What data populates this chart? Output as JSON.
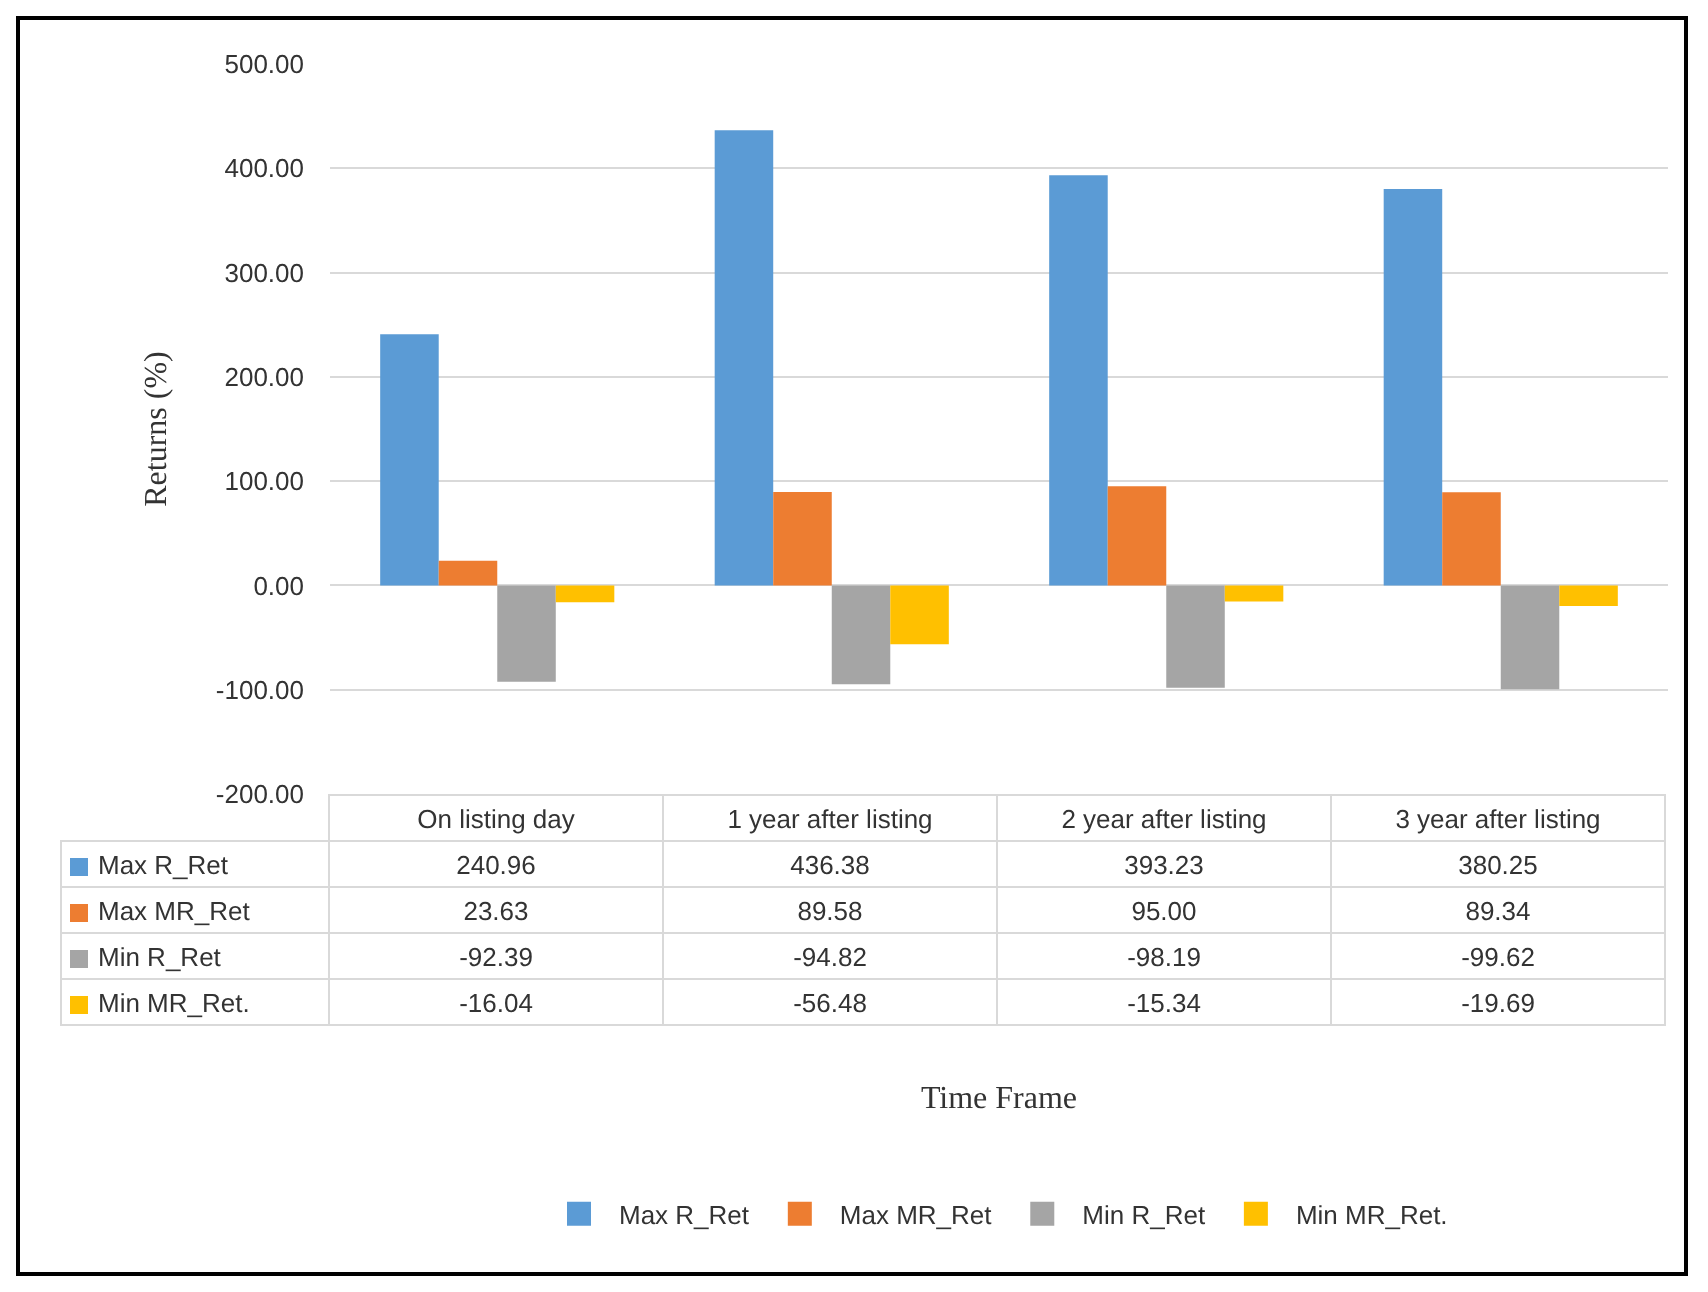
{
  "chart_data": {
    "type": "bar",
    "annotations": [
      "Time Frame"
    ],
    "ylabel": "Returns (%)",
    "categories": [
      "On listing day",
      "1 year after listing",
      "2 year after listing",
      "3 year after listing"
    ],
    "series": [
      {
        "name": "Max R_Ret",
        "color": "#5b9bd5",
        "values": [
          240.96,
          436.38,
          393.23,
          380.25
        ],
        "value_labels": [
          "240.96",
          "436.38",
          "393.23",
          "380.25"
        ]
      },
      {
        "name": "Max MR_Ret",
        "color": "#ed7d31",
        "values": [
          23.63,
          89.58,
          95.0,
          89.34
        ],
        "value_labels": [
          "23.63",
          "89.58",
          "95.00",
          "89.34"
        ]
      },
      {
        "name": "Min R_Ret",
        "color": "#a5a5a5",
        "values": [
          -92.39,
          -94.82,
          -98.19,
          -99.62
        ],
        "value_labels": [
          "-92.39",
          "-94.82",
          "-98.19",
          "-99.62"
        ]
      },
      {
        "name": "Min MR_Ret.",
        "color": "#ffc000",
        "values": [
          -16.04,
          -56.48,
          -15.34,
          -19.69
        ],
        "value_labels": [
          "-16.04",
          "-56.48",
          "-15.34",
          "-19.69"
        ]
      }
    ],
    "ylim": [
      -200,
      500
    ],
    "yticks": [
      {
        "value": -200,
        "label": "-200.00"
      },
      {
        "value": -100,
        "label": "-100.00"
      },
      {
        "value": 0,
        "label": "0.00"
      },
      {
        "value": 100,
        "label": "100.00"
      },
      {
        "value": 200,
        "label": "200.00"
      },
      {
        "value": 300,
        "label": "300.00"
      },
      {
        "value": 400,
        "label": "400.00"
      },
      {
        "value": 500,
        "label": "500.00"
      }
    ],
    "grid": "y",
    "legend": "bottom",
    "tick_labels": "y"
  }
}
